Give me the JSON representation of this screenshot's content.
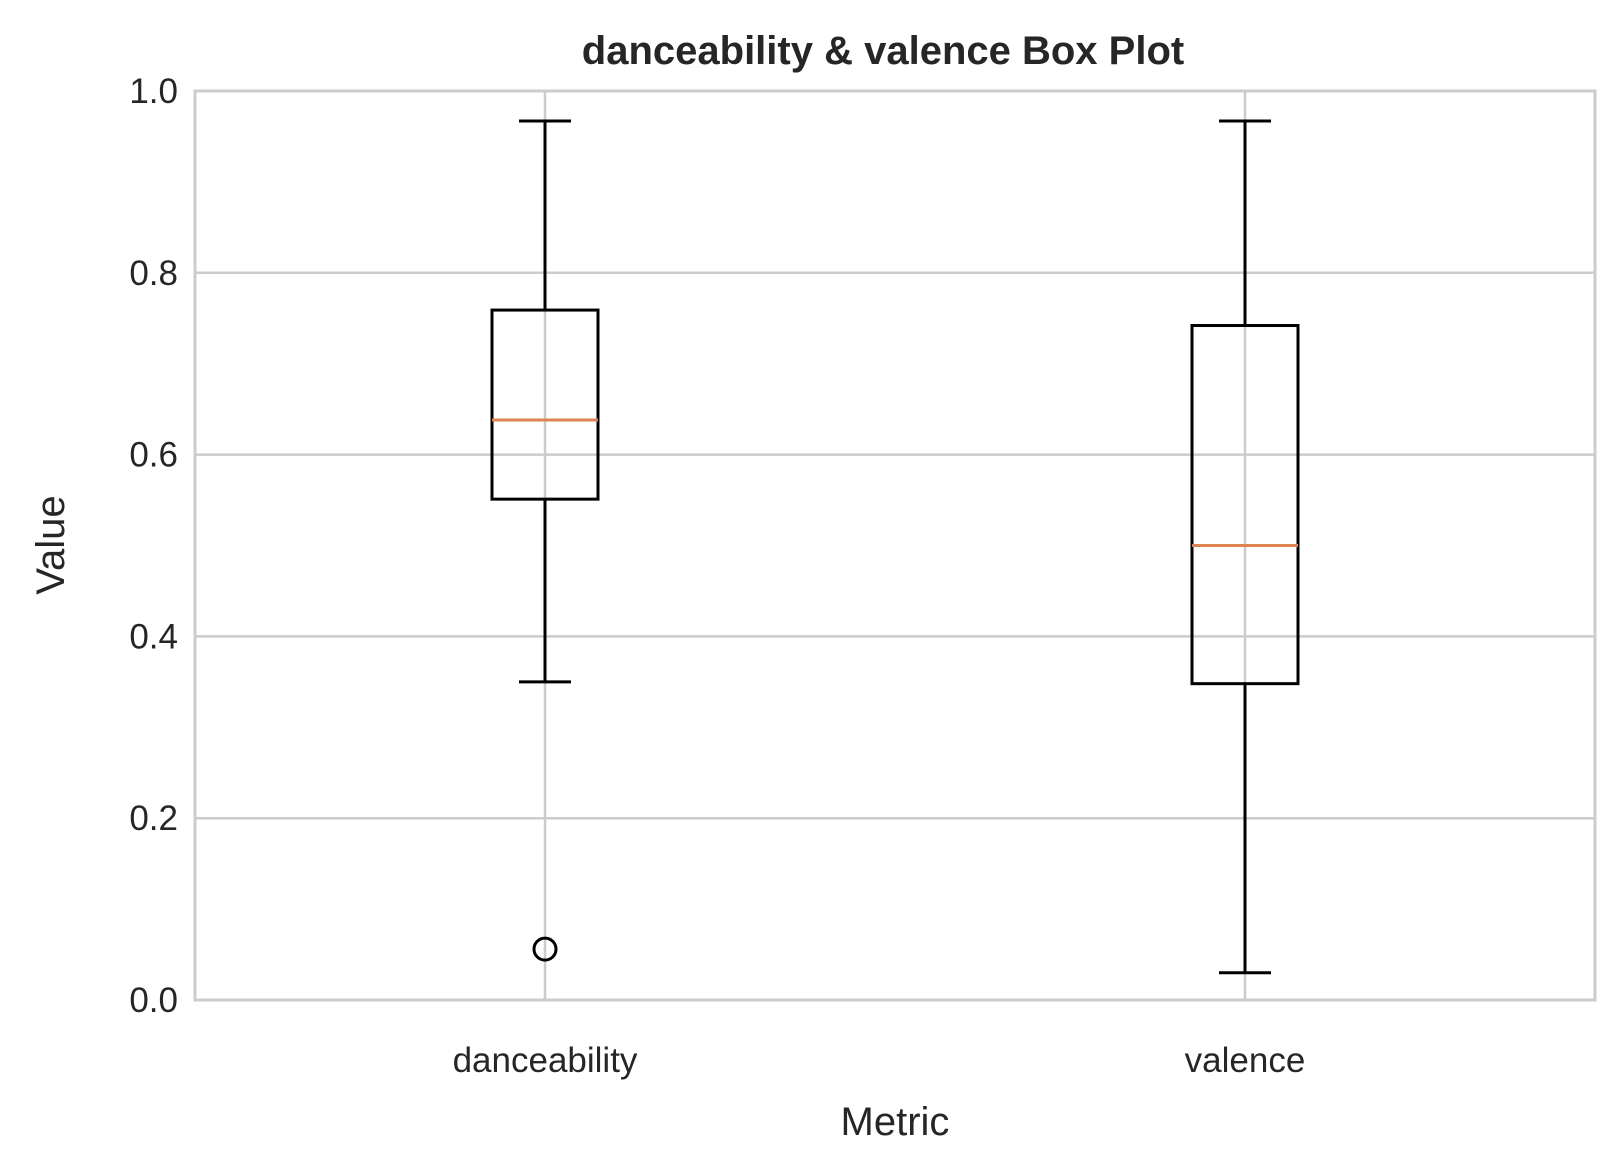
{
  "chart_data": {
    "type": "box",
    "title": "danceability & valence Box Plot",
    "xlabel": "Metric",
    "ylabel": "Value",
    "ylim": [
      0.0,
      1.0
    ],
    "yticks": [
      "0.0",
      "0.2",
      "0.4",
      "0.6",
      "0.8",
      "1.0"
    ],
    "grid": true,
    "categories": [
      "danceability",
      "valence"
    ],
    "boxes": [
      {
        "category": "danceability",
        "whisker_low": 0.35,
        "q1": 0.551,
        "median": 0.638,
        "q3": 0.759,
        "whisker_high": 0.967,
        "outliers": [
          0.056
        ]
      },
      {
        "category": "valence",
        "whisker_low": 0.03,
        "q1": 0.348,
        "median": 0.5,
        "q3": 0.742,
        "whisker_high": 0.967,
        "outliers": []
      }
    ],
    "colors": {
      "box": "#000000",
      "median": "#dd8452",
      "grid": "#cccccc"
    }
  }
}
